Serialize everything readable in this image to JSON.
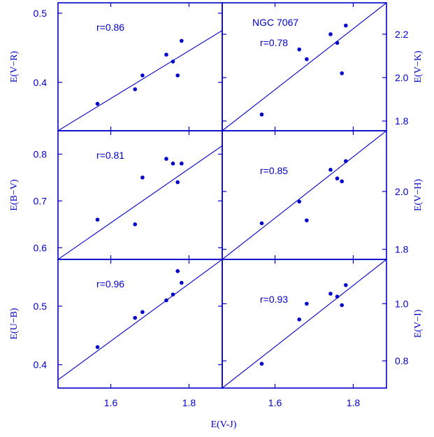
{
  "figure": {
    "color": "#0000cc",
    "shared_xlabel": "E(V-J)",
    "x_ticks": [
      "1.6",
      "1.8"
    ]
  },
  "chart_data": [
    {
      "type": "scatter",
      "ylabel": "E(V−R)",
      "annotation": "r=0.86",
      "title": "",
      "xlim": [
        1.465,
        1.885
      ],
      "ylim": [
        0.33,
        0.515
      ],
      "x_ticks": [
        1.6,
        1.8
      ],
      "y_ticks": [
        0.4,
        0.5
      ],
      "y_tick_labels": [
        "0.4",
        "0.5"
      ],
      "x": [
        1.566,
        1.662,
        1.681,
        1.742,
        1.759,
        1.771,
        1.781
      ],
      "y": [
        0.369,
        0.39,
        0.41,
        0.44,
        0.43,
        0.41,
        0.46
      ],
      "fit_line": {
        "x": [
          1.465,
          1.885
        ],
        "y": [
          0.33,
          0.475
        ]
      },
      "ylabel_side": "left"
    },
    {
      "type": "scatter",
      "ylabel": "E(V−K)",
      "annotation": "r=0.78",
      "title": "NGC 7067",
      "xlim": [
        1.465,
        1.885
      ],
      "ylim": [
        1.755,
        2.345
      ],
      "x_ticks": [
        1.6,
        1.8
      ],
      "y_ticks": [
        1.8,
        2.0,
        2.2
      ],
      "y_tick_labels": [
        "1.8",
        "2.0",
        "2.2"
      ],
      "x": [
        1.566,
        1.662,
        1.681,
        1.742,
        1.759,
        1.771,
        1.781
      ],
      "y": [
        1.83,
        2.13,
        2.085,
        2.2,
        2.16,
        2.02,
        2.24
      ],
      "fit_line": {
        "x": [
          1.465,
          1.885
        ],
        "y": [
          1.755,
          2.345
        ]
      },
      "ylabel_side": "right"
    },
    {
      "type": "scatter",
      "ylabel": "E(B−V)",
      "annotation": "r=0.81",
      "title": "",
      "xlim": [
        1.465,
        1.885
      ],
      "ylim": [
        0.575,
        0.85
      ],
      "x_ticks": [
        1.6,
        1.8
      ],
      "y_ticks": [
        0.6,
        0.7,
        0.8
      ],
      "y_tick_labels": [
        "0.6",
        "0.7",
        "0.8"
      ],
      "x": [
        1.566,
        1.662,
        1.681,
        1.742,
        1.759,
        1.771,
        1.781
      ],
      "y": [
        0.66,
        0.65,
        0.75,
        0.79,
        0.78,
        0.74,
        0.78
      ],
      "fit_line": {
        "x": [
          1.465,
          1.885
        ],
        "y": [
          0.575,
          0.818
        ]
      },
      "ylabel_side": "left"
    },
    {
      "type": "scatter",
      "ylabel": "E(V−H)",
      "annotation": "r=0.85",
      "title": "",
      "xlim": [
        1.465,
        1.885
      ],
      "ylim": [
        1.765,
        2.21
      ],
      "x_ticks": [
        1.6,
        1.8
      ],
      "y_ticks": [
        1.8,
        2.0
      ],
      "y_tick_labels": [
        "1.8",
        "2.0"
      ],
      "x": [
        1.566,
        1.662,
        1.681,
        1.742,
        1.759,
        1.771,
        1.781
      ],
      "y": [
        1.89,
        1.965,
        1.9,
        2.075,
        2.045,
        2.035,
        2.105
      ],
      "fit_line": {
        "x": [
          1.465,
          1.885
        ],
        "y": [
          1.765,
          2.21
        ]
      },
      "ylabel_side": "right"
    },
    {
      "type": "scatter",
      "ylabel": "E(U−B)",
      "annotation": "r=0.96",
      "title": "",
      "xlim": [
        1.465,
        1.885
      ],
      "ylim": [
        0.36,
        0.58
      ],
      "x_ticks": [
        1.6,
        1.8
      ],
      "y_ticks": [
        0.4,
        0.5
      ],
      "y_tick_labels": [
        "0.4",
        "0.5"
      ],
      "x": [
        1.566,
        1.662,
        1.681,
        1.742,
        1.759,
        1.771,
        1.781
      ],
      "y": [
        0.43,
        0.48,
        0.49,
        0.51,
        0.52,
        0.56,
        0.54
      ],
      "fit_line": {
        "x": [
          1.465,
          1.885
        ],
        "y": [
          0.374,
          0.58
        ]
      },
      "ylabel_side": "left"
    },
    {
      "type": "scatter",
      "ylabel": "E(V−I)",
      "annotation": "r=0.93",
      "title": "",
      "xlim": [
        1.465,
        1.885
      ],
      "ylim": [
        0.705,
        1.155
      ],
      "x_ticks": [
        1.6,
        1.8
      ],
      "y_ticks": [
        0.8,
        1.0
      ],
      "y_tick_labels": [
        "0.8",
        "1.0"
      ],
      "x": [
        1.566,
        1.662,
        1.681,
        1.742,
        1.759,
        1.771,
        1.781
      ],
      "y": [
        0.79,
        0.945,
        1.0,
        1.035,
        1.025,
        0.995,
        1.065
      ],
      "fit_line": {
        "x": [
          1.465,
          1.885
        ],
        "y": [
          0.705,
          1.155
        ]
      },
      "ylabel_side": "right"
    }
  ]
}
